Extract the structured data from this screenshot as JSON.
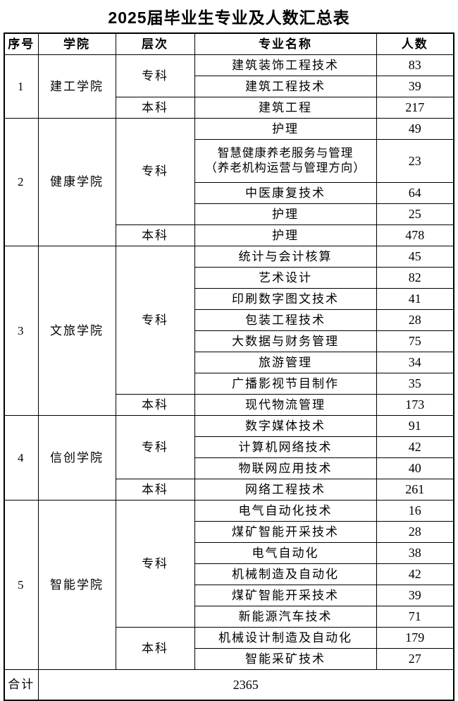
{
  "title": "2025届毕业生专业及人数汇总表",
  "table": {
    "headers": {
      "no": "序号",
      "college": "学院",
      "level": "层次",
      "major": "专业名称",
      "count": "人数"
    },
    "groups": [
      {
        "no": "1",
        "college": "建工学院",
        "levels": [
          {
            "name": "专科",
            "majors": [
              {
                "major": "建筑装饰工程技术",
                "count": 83
              },
              {
                "major": "建筑工程技术",
                "count": 39
              }
            ]
          },
          {
            "name": "本科",
            "majors": [
              {
                "major": "建筑工程",
                "count": 217
              }
            ]
          }
        ]
      },
      {
        "no": "2",
        "college": "健康学院",
        "levels": [
          {
            "name": "专科",
            "majors": [
              {
                "major": "护理",
                "count": 49
              },
              {
                "major": "智慧健康养老服务与管理\n（养老机构运营与管理方向）",
                "count": 23
              },
              {
                "major": "中医康复技术",
                "count": 64
              },
              {
                "major": "护理",
                "count": 25
              }
            ]
          },
          {
            "name": "本科",
            "majors": [
              {
                "major": "护理",
                "count": 478
              }
            ]
          }
        ]
      },
      {
        "no": "3",
        "college": "文旅学院",
        "levels": [
          {
            "name": "专科",
            "majors": [
              {
                "major": "统计与会计核算",
                "count": 45
              },
              {
                "major": "艺术设计",
                "count": 82
              },
              {
                "major": "印刷数字图文技术",
                "count": 41
              },
              {
                "major": "包装工程技术",
                "count": 28
              },
              {
                "major": "大数据与财务管理",
                "count": 75
              },
              {
                "major": "旅游管理",
                "count": 34
              },
              {
                "major": "广播影视节目制作",
                "count": 35
              }
            ]
          },
          {
            "name": "本科",
            "majors": [
              {
                "major": "现代物流管理",
                "count": 173
              }
            ]
          }
        ]
      },
      {
        "no": "4",
        "college": "信创学院",
        "levels": [
          {
            "name": "专科",
            "majors": [
              {
                "major": "数字媒体技术",
                "count": 91
              },
              {
                "major": "计算机网络技术",
                "count": 42
              },
              {
                "major": "物联网应用技术",
                "count": 40
              }
            ]
          },
          {
            "name": "本科",
            "majors": [
              {
                "major": "网络工程技术",
                "count": 261
              }
            ]
          }
        ]
      },
      {
        "no": "5",
        "college": "智能学院",
        "levels": [
          {
            "name": "专科",
            "majors": [
              {
                "major": "电气自动化技术",
                "count": 16
              },
              {
                "major": "煤矿智能开采技术",
                "count": 28
              },
              {
                "major": "电气自动化",
                "count": 38
              },
              {
                "major": "机械制造及自动化",
                "count": 42
              },
              {
                "major": "煤矿智能开采技术",
                "count": 39
              },
              {
                "major": "新能源汽车技术",
                "count": 71
              }
            ]
          },
          {
            "name": "本科",
            "majors": [
              {
                "major": "机械设计制造及自动化",
                "count": 179
              },
              {
                "major": "智能采矿技术",
                "count": 27
              }
            ]
          }
        ]
      }
    ],
    "total": {
      "label": "合计",
      "value": 2365
    }
  }
}
